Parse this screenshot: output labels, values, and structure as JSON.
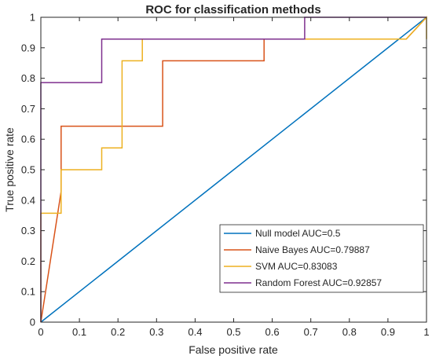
{
  "chart_data": {
    "type": "line",
    "title": "ROC for classification methods",
    "xlabel": "False positive rate",
    "ylabel": "True positive rate",
    "xlim": [
      0,
      1
    ],
    "ylim": [
      0,
      1
    ],
    "xticks": [
      "0",
      "0.1",
      "0.2",
      "0.3",
      "0.4",
      "0.5",
      "0.6",
      "0.7",
      "0.8",
      "0.9",
      "1"
    ],
    "yticks": [
      "0",
      "0.1",
      "0.2",
      "0.3",
      "0.4",
      "0.5",
      "0.6",
      "0.7",
      "0.8",
      "0.9",
      "1"
    ],
    "grid": false,
    "legend_position": "bottom-right",
    "series": [
      {
        "name": "Null model AUC=0.5",
        "color": "#0072BD",
        "x": [
          0,
          1
        ],
        "y": [
          0,
          1
        ]
      },
      {
        "name": "Naive Bayes AUC=0.79887",
        "color": "#D95319",
        "x": [
          0,
          0.0526,
          0.0526,
          0.3158,
          0.3158,
          0.5789,
          0.5789,
          0.9474,
          1.0
        ],
        "y": [
          0,
          0.4286,
          0.6429,
          0.6429,
          0.8571,
          0.8571,
          0.9286,
          0.9286,
          1.0
        ]
      },
      {
        "name": "SVM AUC=0.83083",
        "color": "#EDB120",
        "x": [
          0,
          0,
          0.0526,
          0.0526,
          0.0526,
          0.1579,
          0.1579,
          0.2105,
          0.2105,
          0.2632,
          0.2632,
          0.6842,
          0.6842,
          0.9474,
          1.0,
          1.0
        ],
        "y": [
          0,
          0.3571,
          0.3571,
          0.4286,
          0.5,
          0.5,
          0.5714,
          0.5714,
          0.8571,
          0.8571,
          0.9286,
          0.9286,
          0.9286,
          0.9286,
          1.0,
          0.9286
        ]
      },
      {
        "name": "Random Forest AUC=0.92857",
        "color": "#7E2F8E",
        "x": [
          0,
          0,
          0.1579,
          0.1579,
          0.6842,
          0.6842,
          1.0
        ],
        "y": [
          0,
          0.7857,
          0.7857,
          0.9286,
          0.9286,
          1.0,
          1.0
        ]
      }
    ]
  }
}
